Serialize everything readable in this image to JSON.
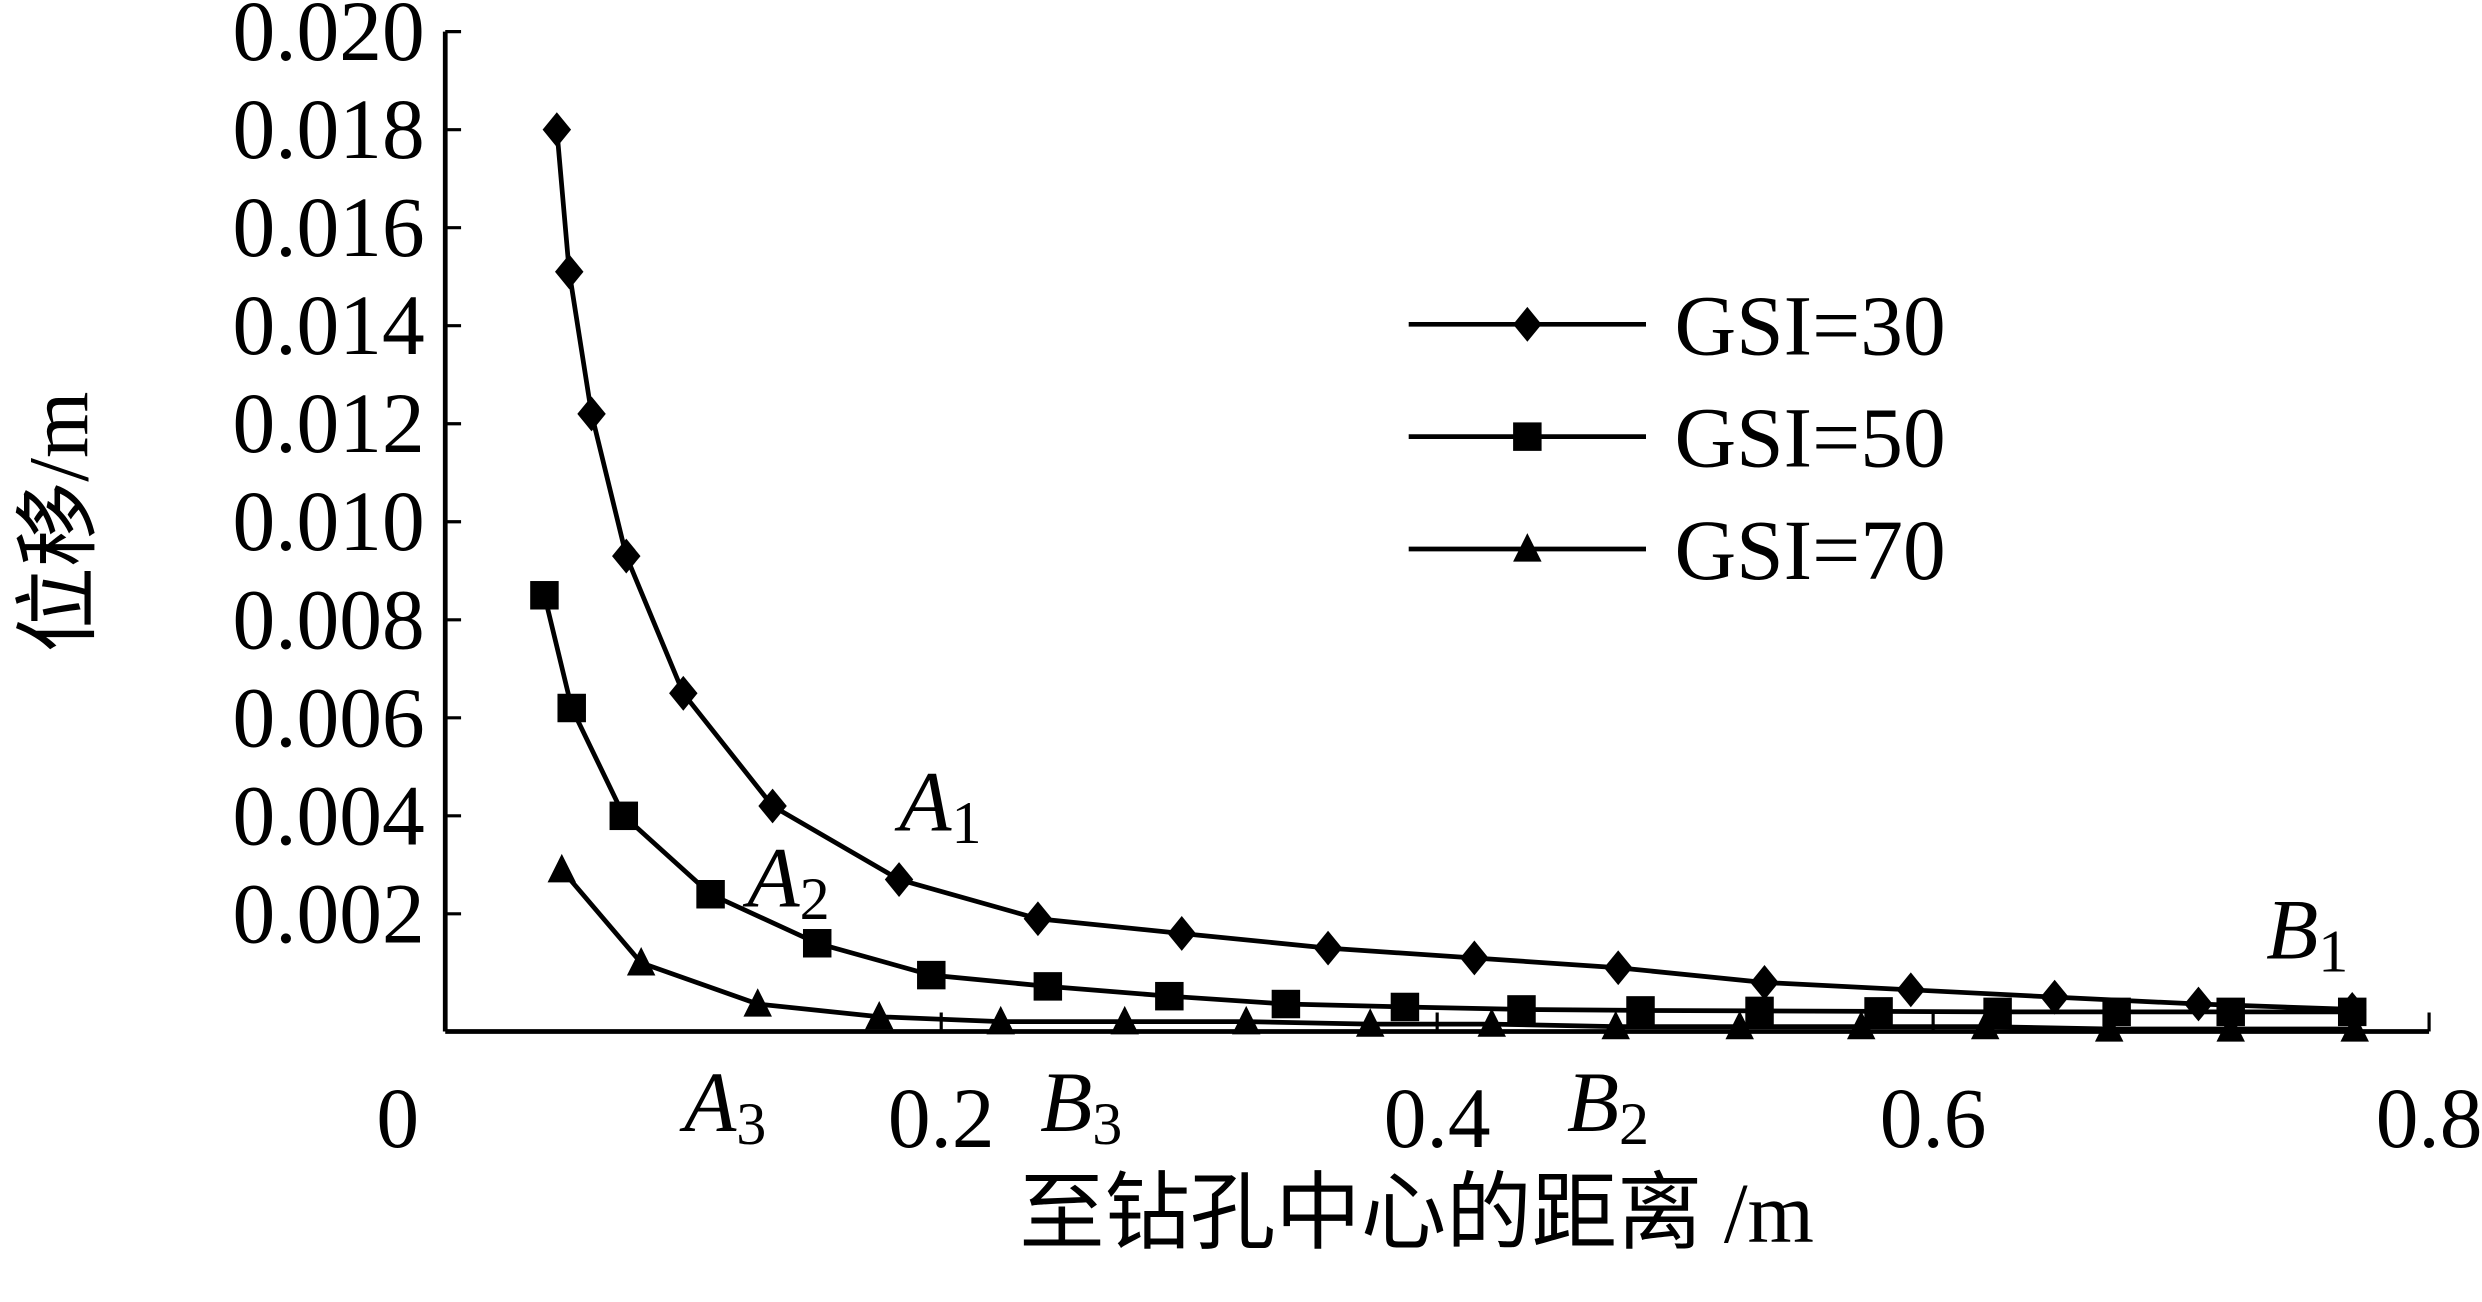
{
  "chart_data": {
    "type": "line",
    "xlabel": "至钻孔中心的距离 /m",
    "ylabel": "位移/m",
    "xlim": [
      0,
      0.8
    ],
    "xticks": [
      0,
      0.2,
      0.4,
      0.6,
      0.8
    ],
    "ylim": [
      -0.0004,
      0.02
    ],
    "yticks": [
      0.002,
      0.004,
      0.006,
      0.008,
      {
        "value": 0.01,
        "label": "0.010"
      },
      0.012,
      0.014,
      0.016,
      0.018,
      {
        "value": 0.02,
        "label": "0.020"
      }
    ],
    "series": [
      {
        "name": "GSI=30",
        "color": "#000000",
        "marker": "diamond",
        "x": [
          0.045,
          0.05,
          0.059,
          0.073,
          0.096,
          0.132,
          0.183,
          0.239,
          0.297,
          0.356,
          0.415,
          0.473,
          0.532,
          0.591,
          0.649,
          0.707,
          0.769
        ],
        "values": [
          0.018,
          0.0151,
          0.0122,
          0.0093,
          0.0065,
          0.0042,
          0.0027,
          0.0019,
          0.0016,
          0.0013,
          0.0011,
          0.0009,
          0.0006,
          0.00045,
          0.0003,
          0.00016,
          5e-05
        ]
      },
      {
        "name": "GSI=50",
        "color": "#000000",
        "marker": "square",
        "x": [
          0.04,
          0.051,
          0.072,
          0.107,
          0.15,
          0.196,
          0.243,
          0.292,
          0.339,
          0.387,
          0.434,
          0.482,
          0.53,
          0.578,
          0.626,
          0.674,
          0.72,
          0.769
        ],
        "values": [
          0.0085,
          0.0062,
          0.004,
          0.0024,
          0.0014,
          0.00075,
          0.00052,
          0.00032,
          0.00016,
          0.0001,
          5e-05,
          3e-05,
          2e-05,
          1e-05,
          0,
          0,
          0,
          0
        ]
      },
      {
        "name": "GSI=70",
        "color": "#000000",
        "marker": "triangle",
        "x": [
          0.047,
          0.079,
          0.126,
          0.175,
          0.224,
          0.274,
          0.323,
          0.373,
          0.422,
          0.472,
          0.522,
          0.571,
          0.621,
          0.671,
          0.72,
          0.77
        ],
        "values": [
          0.0029,
          0.001,
          0.00016,
          -0.0001,
          -0.0002,
          -0.0002,
          -0.0002,
          -0.00025,
          -0.00025,
          -0.0003,
          -0.0003,
          -0.0003,
          -0.0003,
          -0.00035,
          -0.00035,
          -0.00035
        ]
      }
    ],
    "annotations": [
      {
        "label": "A",
        "sub": "1"
      },
      {
        "label": "A",
        "sub": "2"
      },
      {
        "label": "A",
        "sub": "3"
      },
      {
        "label": "B",
        "sub": "1"
      },
      {
        "label": "B",
        "sub": "2"
      },
      {
        "label": "B",
        "sub": "3"
      }
    ]
  }
}
